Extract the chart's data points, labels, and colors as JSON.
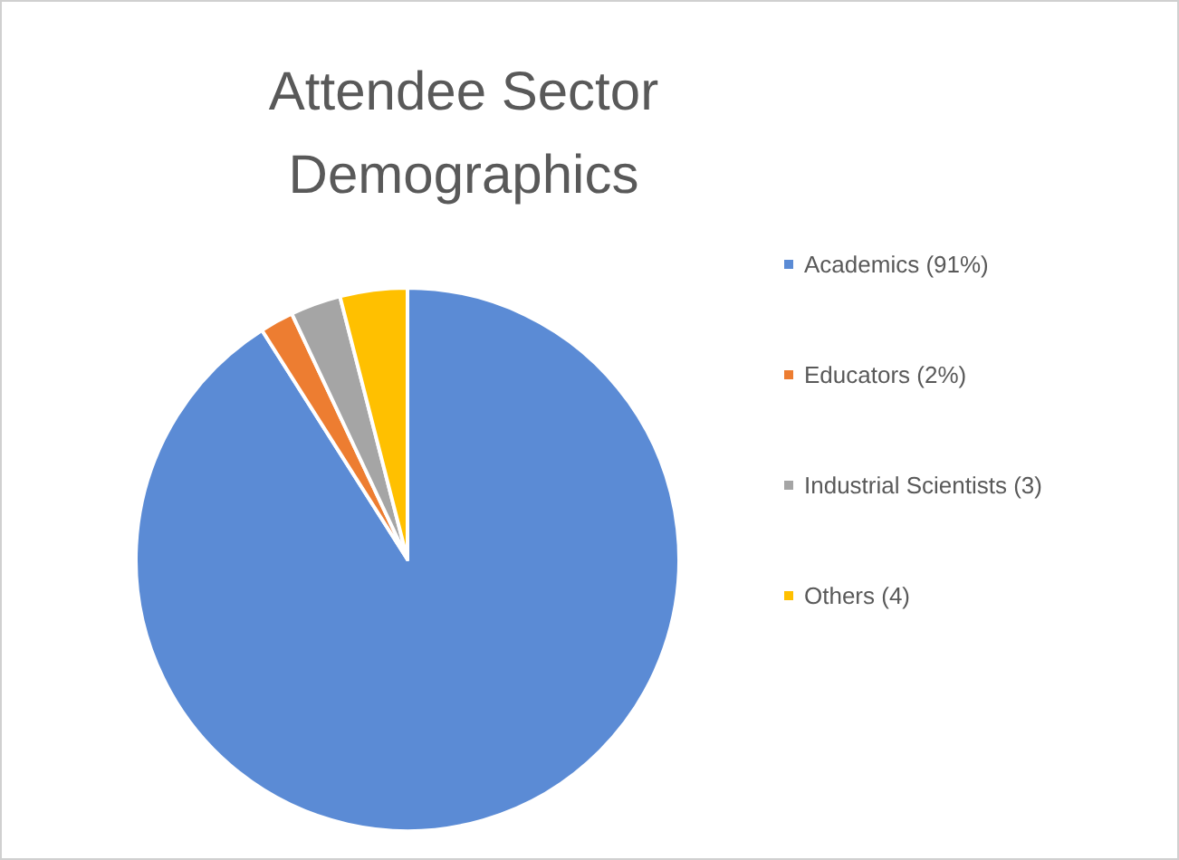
{
  "chart_data": {
    "type": "pie",
    "title": "Attendee Sector\nDemographics",
    "categories": [
      "Academics (91%)",
      "Educators (2%)",
      "Industrial Scientists (3)",
      "Others (4)"
    ],
    "values": [
      91,
      2,
      3,
      4
    ],
    "colors": [
      "#5b8bd5",
      "#ed7d31",
      "#a5a5a5",
      "#ffc000"
    ],
    "legend": "right"
  }
}
